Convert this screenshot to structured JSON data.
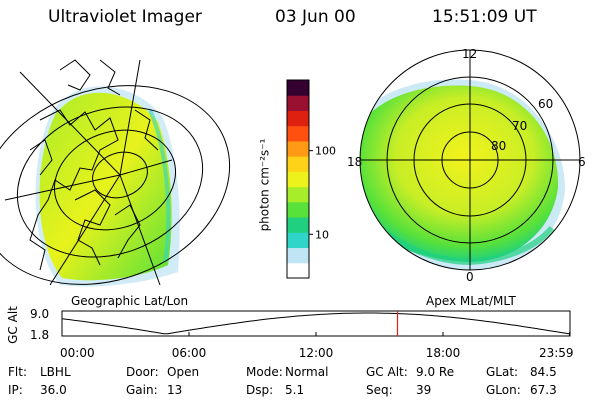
{
  "header": {
    "title": "Ultraviolet Imager",
    "date": "03 Jun 00",
    "time": "15:51:09 UT"
  },
  "left_panel": {
    "caption": "Geographic Lat/Lon"
  },
  "right_panel": {
    "caption": "Apex MLat/MLT",
    "mlt_labels": {
      "top": "12",
      "left": "18",
      "right": "6",
      "bottom": "0"
    },
    "lat_labels": [
      "60",
      "70",
      "80"
    ]
  },
  "colorbar": {
    "axis_label": "photon cm⁻²s⁻¹",
    "ticks": [
      {
        "label": "100",
        "value": 100
      },
      {
        "label": "10",
        "value": 10
      }
    ],
    "range": [
      3,
      700
    ],
    "colors": [
      "#ffffff",
      "#bfe4f4",
      "#2fd5c9",
      "#1fd080",
      "#57e13a",
      "#a8ed2a",
      "#eef21c",
      "#ffd21a",
      "#ff9a16",
      "#ff5010",
      "#dd2010",
      "#991030",
      "#330030"
    ]
  },
  "timeline": {
    "ylabel": "GC Alt",
    "y_ticks": [
      "9.0",
      "1.8"
    ],
    "x_ticks": [
      "00:00",
      "06:00",
      "12:00",
      "18:00",
      "23:59"
    ],
    "current_time_hours": 15.85,
    "current_color": "#e0201a"
  },
  "info": [
    [
      {
        "label": "Flt:",
        "value": "LBHL"
      },
      {
        "label": "Door:",
        "value": "Open"
      },
      {
        "label": "Mode:",
        "value": "Normal"
      },
      {
        "label": "GC Alt:",
        "value": "9.0 Re"
      },
      {
        "label": "GLat:",
        "value": "84.5"
      }
    ],
    [
      {
        "label": "IP:",
        "value": "36.0"
      },
      {
        "label": "Gain:",
        "value": "13"
      },
      {
        "label": "Dsp:",
        "value": "5.1"
      },
      {
        "label": "Seq:",
        "value": "39"
      },
      {
        "label": "GLon:",
        "value": "67.3"
      }
    ]
  ]
}
